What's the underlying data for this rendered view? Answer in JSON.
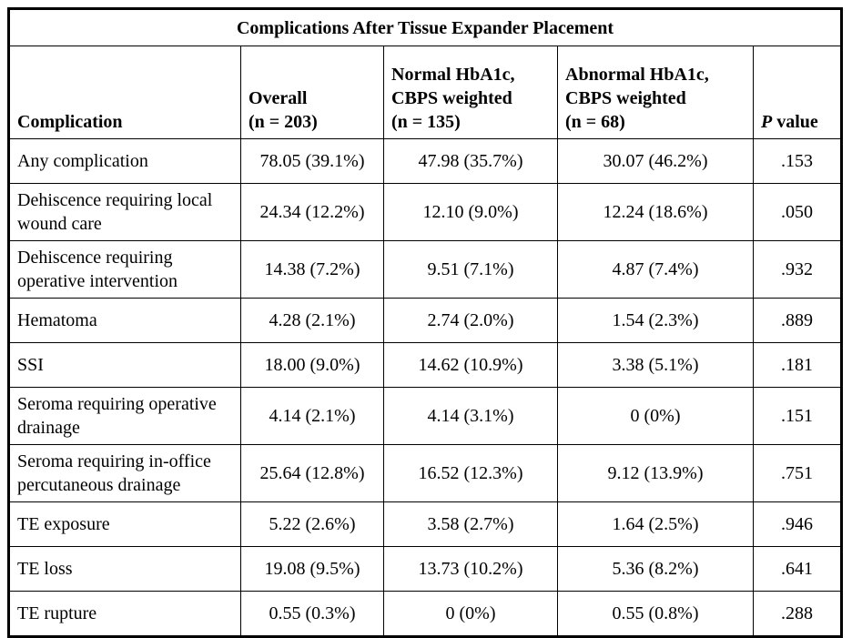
{
  "table": {
    "title": "Complications After Tissue Expander Placement",
    "header": {
      "complication": "Complication",
      "overall": "Overall\n(n = 203)",
      "normal_hba1c": "Normal HbA1c,\nCBPS weighted\n(n = 135)",
      "abnormal_hba1c": "Abnormal HbA1c,\nCBPS weighted\n(n = 68)",
      "p_value_italic": "P",
      "p_value_rest": " value"
    },
    "rows": [
      {
        "complication": "Any complication",
        "overall": "78.05 (39.1%)",
        "normal_hba1c": "47.98 (35.7%)",
        "abnormal_hba1c": "30.07 (46.2%)",
        "p_value": ".153"
      },
      {
        "complication": "Dehiscence requiring local wound care",
        "overall": "24.34 (12.2%)",
        "normal_hba1c": "12.10 (9.0%)",
        "abnormal_hba1c": "12.24 (18.6%)",
        "p_value": ".050"
      },
      {
        "complication": "Dehiscence requiring operative intervention",
        "overall": "14.38 (7.2%)",
        "normal_hba1c": "9.51 (7.1%)",
        "abnormal_hba1c": "4.87 (7.4%)",
        "p_value": ".932"
      },
      {
        "complication": "Hematoma",
        "overall": "4.28 (2.1%)",
        "normal_hba1c": "2.74 (2.0%)",
        "abnormal_hba1c": "1.54 (2.3%)",
        "p_value": ".889"
      },
      {
        "complication": "SSI",
        "overall": "18.00 (9.0%)",
        "normal_hba1c": "14.62 (10.9%)",
        "abnormal_hba1c": "3.38 (5.1%)",
        "p_value": ".181"
      },
      {
        "complication": "Seroma requiring operative drainage",
        "overall": "4.14 (2.1%)",
        "normal_hba1c": "4.14 (3.1%)",
        "abnormal_hba1c": "0 (0%)",
        "p_value": ".151"
      },
      {
        "complication": "Seroma requiring in-office percutaneous drainage",
        "overall": "25.64 (12.8%)",
        "normal_hba1c": "16.52 (12.3%)",
        "abnormal_hba1c": "9.12 (13.9%)",
        "p_value": ".751"
      },
      {
        "complication": "TE exposure",
        "overall": "5.22 (2.6%)",
        "normal_hba1c": "3.58 (2.7%)",
        "abnormal_hba1c": "1.64 (2.5%)",
        "p_value": ".946"
      },
      {
        "complication": "TE loss",
        "overall": "19.08 (9.5%)",
        "normal_hba1c": "13.73 (10.2%)",
        "abnormal_hba1c": "5.36 (8.2%)",
        "p_value": ".641"
      },
      {
        "complication": "TE rupture",
        "overall": "0.55 (0.3%)",
        "normal_hba1c": "0 (0%)",
        "abnormal_hba1c": "0.55 (0.8%)",
        "p_value": ".288"
      }
    ]
  }
}
